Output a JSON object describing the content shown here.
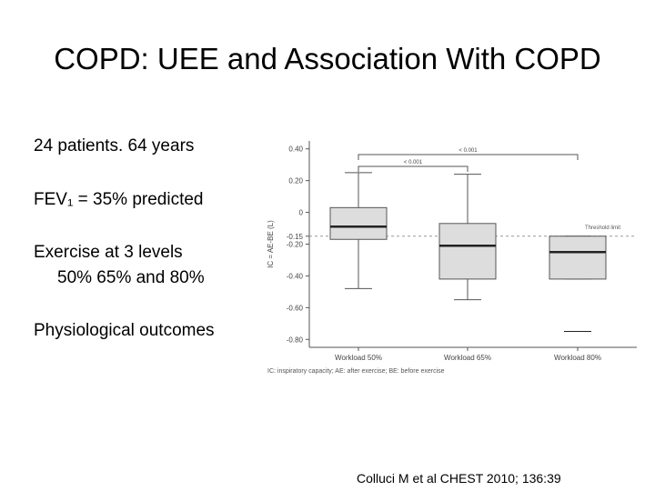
{
  "slide": {
    "title": "COPD: UEE and Association With COPD",
    "bullets": [
      "24 patients. 64 years",
      "FEV₁ = 35% predicted",
      "Exercise at 3 levels",
      "50%   65%   and 80%",
      "Physiological outcomes"
    ],
    "citation": "Colluci M et al CHEST 2010; 136:39"
  },
  "chart_data": {
    "type": "boxplot",
    "ylabel": "IC = AE-BE (L)",
    "ylim": [
      -0.85,
      0.45
    ],
    "yticks": [
      0.4,
      0.2,
      0,
      -0.15,
      -0.2,
      -0.4,
      -0.6,
      -0.8
    ],
    "ytick_labels": [
      "0.40",
      "0.20",
      "0",
      "-0.15",
      "-0.20",
      "-0.40",
      "-0.60",
      "-0.80"
    ],
    "categories": [
      "Workload 50%",
      "Workload 65%",
      "Workload 80%"
    ],
    "boxes": [
      {
        "whisker_low": -0.48,
        "q1": -0.17,
        "median": -0.09,
        "q3": 0.03,
        "whisker_high": 0.25
      },
      {
        "whisker_low": -0.55,
        "q1": -0.42,
        "median": -0.21,
        "q3": -0.07,
        "whisker_high": 0.24
      },
      {
        "whisker_low": -0.42,
        "q1": -0.42,
        "median": -0.25,
        "q3": -0.15,
        "whisker_high": -0.15,
        "outlier_line": -0.75
      }
    ],
    "threshold": {
      "value": -0.15,
      "label": "Threshold limit"
    },
    "significance": [
      {
        "from": 0,
        "to": 1,
        "label": "< 0.001"
      },
      {
        "from": 0,
        "to": 2,
        "label": "< 0.001"
      }
    ],
    "footnote": "IC: inspiratory capacity; AE: after exercise; BE: before exercise",
    "colors": {
      "box_fill": "#dddddd",
      "stroke": "#555555"
    }
  }
}
